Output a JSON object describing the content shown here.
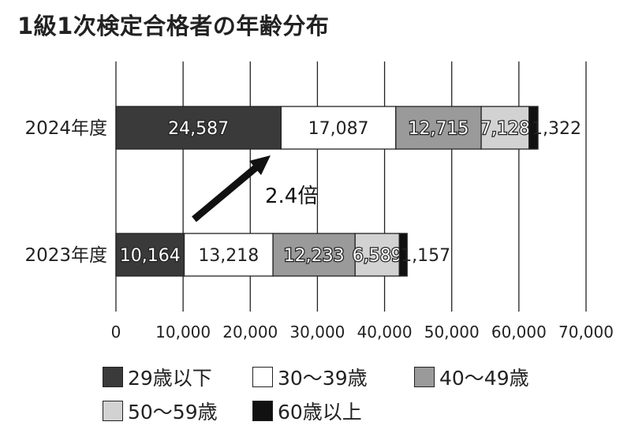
{
  "chart_data": {
    "type": "bar",
    "orientation": "horizontal",
    "stacked": true,
    "title": "1級1次検定合格者の年齢分布",
    "categories": [
      "2024年度",
      "2023年度"
    ],
    "series": [
      {
        "name": "29歳以下",
        "color": "#3a3a3a",
        "label_color": "#ffffff",
        "values": [
          24587,
          10164
        ]
      },
      {
        "name": "30～39歳",
        "color": "#ffffff",
        "label_color": "#222222",
        "values": [
          17087,
          13218
        ]
      },
      {
        "name": "40～49歳",
        "color": "#9a9a9a",
        "label_color": "#ffffff",
        "values": [
          12715,
          12233
        ]
      },
      {
        "name": "50～59歳",
        "color": "#d2d2d2",
        "label_color": "#ffffff",
        "values": [
          7128,
          6589
        ]
      },
      {
        "name": "60歳以上",
        "color": "#111111",
        "label_color": "#222222",
        "values": [
          1322,
          1157
        ]
      }
    ],
    "data_labels": [
      [
        "24,587",
        "17,087",
        "12,715",
        "7,128",
        "1,322"
      ],
      [
        "10,164",
        "13,218",
        "12,233",
        "6,589",
        "1,157"
      ]
    ],
    "xlim": [
      0,
      70000
    ],
    "x_ticks": [
      0,
      10000,
      20000,
      30000,
      40000,
      50000,
      60000,
      70000
    ],
    "x_tick_labels": [
      "0",
      "10,000",
      "20,000",
      "30,000",
      "40,000",
      "50,000",
      "60,000",
      "70,000"
    ],
    "grid": "vertical",
    "legend_position": "bottom-left",
    "annotation": {
      "text": "2.4倍",
      "arrow": "up-right"
    }
  }
}
